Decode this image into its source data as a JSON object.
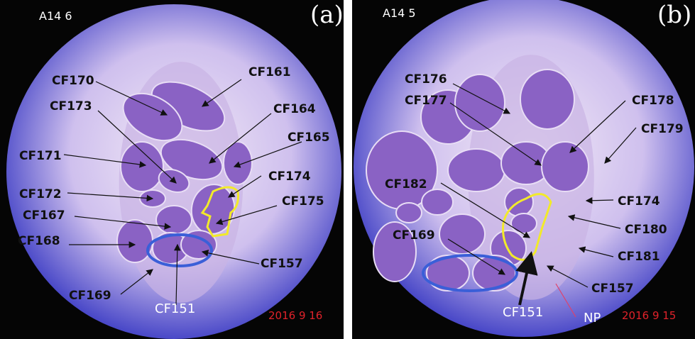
{
  "colors": {
    "background": "#050505",
    "field_center": "#f3eaf6",
    "field_edge": "#4a49c8",
    "fascicle": "#8a62c4",
    "yellow_outline": "#f2ea2a",
    "blue_outline": "#3a5fd8",
    "date": "#e0222a"
  },
  "panels": [
    {
      "tag": "(a)",
      "sample": "A14 6",
      "date": "2016 9 16",
      "bottom_label": "CF151",
      "labels": [
        "CF161",
        "CF170",
        "CF173",
        "CF164",
        "CF165",
        "CF171",
        "CF174",
        "CF172",
        "CF175",
        "CF167",
        "CF168",
        "CF157",
        "CF169"
      ]
    },
    {
      "tag": "(b)",
      "sample": "A14 5",
      "date": "2016 9 15",
      "bottom_label": "CF151",
      "np_label": "NP",
      "labels": [
        "CF176",
        "CF177",
        "CF178",
        "CF179",
        "CF182",
        "CF174",
        "CF180",
        "CF169",
        "CF181",
        "CF157"
      ]
    }
  ]
}
